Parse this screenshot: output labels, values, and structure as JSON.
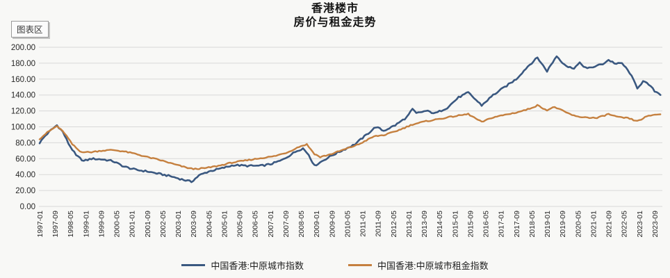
{
  "window": {
    "tooltip_label": "图表区"
  },
  "title": {
    "line1": "香港楼市",
    "line2": "房价与租金走势"
  },
  "chart_data": {
    "type": "line",
    "title": "香港楼市 房价与租金走势",
    "xlabel": "",
    "ylabel": "",
    "ylim": [
      0,
      200
    ],
    "y_tick_step": 20,
    "y_tick_decimals": 2,
    "grid": "horizontal",
    "gridline_color": "#d9d9d8",
    "axis_text_color": "#262626",
    "legend_position": "bottom",
    "x_start": "1997-01",
    "x_end": "2024-01",
    "x_tick_interval_months": 8,
    "x_tick_labels": [
      "1997-01",
      "1997-09",
      "1998-05",
      "1999-01",
      "1999-09",
      "2000-05",
      "2001-01",
      "2001-09",
      "2002-05",
      "2003-01",
      "2003-09",
      "2004-05",
      "2005-01",
      "2005-09",
      "2006-05",
      "2007-01",
      "2007-09",
      "2008-05",
      "2009-01",
      "2009-09",
      "2010-05",
      "2011-01",
      "2011-09",
      "2012-05",
      "2013-01",
      "2013-09",
      "2014-05",
      "2015-01",
      "2015-09",
      "2016-05",
      "2017-01",
      "2017-09",
      "2018-05",
      "2019-01",
      "2019-09",
      "2020-05",
      "2021-01",
      "2021-09",
      "2022-05",
      "2023-01",
      "2023-09"
    ],
    "series": [
      {
        "name": "中国香港:中原城市指数",
        "color": "#3a5880",
        "keypoints": [
          [
            "1997-01",
            80
          ],
          [
            "1997-04",
            89
          ],
          [
            "1997-07",
            96
          ],
          [
            "1997-10",
            102
          ],
          [
            "1998-01",
            94
          ],
          [
            "1998-04",
            79
          ],
          [
            "1998-08",
            64
          ],
          [
            "1998-12",
            57
          ],
          [
            "1999-04",
            60
          ],
          [
            "1999-10",
            59
          ],
          [
            "2000-03",
            57
          ],
          [
            "2000-09",
            50
          ],
          [
            "2001-03",
            46
          ],
          [
            "2001-09",
            44
          ],
          [
            "2002-03",
            41
          ],
          [
            "2002-09",
            38
          ],
          [
            "2003-03",
            34
          ],
          [
            "2003-08",
            31
          ],
          [
            "2003-12",
            39
          ],
          [
            "2004-05",
            44
          ],
          [
            "2004-12",
            48
          ],
          [
            "2005-06",
            52
          ],
          [
            "2006-01",
            51
          ],
          [
            "2006-08",
            51
          ],
          [
            "2007-01",
            53
          ],
          [
            "2007-07",
            58
          ],
          [
            "2008-03",
            70
          ],
          [
            "2008-06",
            73
          ],
          [
            "2008-09",
            65
          ],
          [
            "2008-12",
            51
          ],
          [
            "2009-04",
            57
          ],
          [
            "2009-09",
            64
          ],
          [
            "2010-03",
            71
          ],
          [
            "2010-09",
            78
          ],
          [
            "2011-03",
            90
          ],
          [
            "2011-08",
            100
          ],
          [
            "2011-12",
            95
          ],
          [
            "2012-06",
            102
          ],
          [
            "2012-12",
            112
          ],
          [
            "2013-03",
            122
          ],
          [
            "2013-05",
            117
          ],
          [
            "2013-10",
            120
          ],
          [
            "2014-03",
            117
          ],
          [
            "2014-09",
            124
          ],
          [
            "2015-03",
            137
          ],
          [
            "2015-08",
            143
          ],
          [
            "2016-03",
            127
          ],
          [
            "2016-09",
            140
          ],
          [
            "2017-03",
            150
          ],
          [
            "2017-09",
            160
          ],
          [
            "2018-03",
            176
          ],
          [
            "2018-08",
            187
          ],
          [
            "2019-01",
            170
          ],
          [
            "2019-06",
            189
          ],
          [
            "2019-09",
            181
          ],
          [
            "2019-12",
            175
          ],
          [
            "2020-03",
            174
          ],
          [
            "2020-06",
            180
          ],
          [
            "2020-10",
            173
          ],
          [
            "2021-02",
            176
          ],
          [
            "2021-06",
            179
          ],
          [
            "2021-09",
            184
          ],
          [
            "2022-01",
            179
          ],
          [
            "2022-04",
            180
          ],
          [
            "2022-08",
            168
          ],
          [
            "2022-12",
            149
          ],
          [
            "2023-03",
            157
          ],
          [
            "2023-06",
            153
          ],
          [
            "2023-09",
            145
          ],
          [
            "2023-12",
            141
          ]
        ]
      },
      {
        "name": "中国香港:中原城市租金指数",
        "color": "#c5803f",
        "keypoints": [
          [
            "1997-01",
            85
          ],
          [
            "1997-05",
            93
          ],
          [
            "1997-10",
            101
          ],
          [
            "1998-02",
            92
          ],
          [
            "1998-06",
            78
          ],
          [
            "1998-10",
            69
          ],
          [
            "1999-03",
            68
          ],
          [
            "1999-09",
            70
          ],
          [
            "2000-03",
            71
          ],
          [
            "2000-09",
            69
          ],
          [
            "2001-03",
            66
          ],
          [
            "2001-09",
            62
          ],
          [
            "2002-04",
            58
          ],
          [
            "2002-11",
            53
          ],
          [
            "2003-05",
            49
          ],
          [
            "2003-09",
            47
          ],
          [
            "2004-03",
            48
          ],
          [
            "2004-10",
            51
          ],
          [
            "2005-05",
            55
          ],
          [
            "2006-01",
            58
          ],
          [
            "2006-09",
            61
          ],
          [
            "2007-03",
            63
          ],
          [
            "2007-10",
            68
          ],
          [
            "2008-04",
            75
          ],
          [
            "2008-08",
            78
          ],
          [
            "2008-12",
            66
          ],
          [
            "2009-03",
            62
          ],
          [
            "2009-09",
            66
          ],
          [
            "2010-04",
            72
          ],
          [
            "2010-11",
            78
          ],
          [
            "2011-07",
            88
          ],
          [
            "2012-01",
            90
          ],
          [
            "2012-08",
            96
          ],
          [
            "2013-03",
            103
          ],
          [
            "2013-10",
            107
          ],
          [
            "2014-05",
            110
          ],
          [
            "2014-12",
            113
          ],
          [
            "2015-08",
            116
          ],
          [
            "2016-03",
            106
          ],
          [
            "2016-09",
            112
          ],
          [
            "2017-03",
            115
          ],
          [
            "2017-09",
            118
          ],
          [
            "2018-03",
            122
          ],
          [
            "2018-08",
            127
          ],
          [
            "2019-01",
            121
          ],
          [
            "2019-05",
            125
          ],
          [
            "2019-10",
            119
          ],
          [
            "2020-04",
            113
          ],
          [
            "2020-09",
            112
          ],
          [
            "2021-03",
            111
          ],
          [
            "2021-09",
            116
          ],
          [
            "2022-02",
            112
          ],
          [
            "2022-07",
            111
          ],
          [
            "2022-12",
            107
          ],
          [
            "2023-04",
            112
          ],
          [
            "2023-08",
            115
          ],
          [
            "2023-12",
            116
          ]
        ]
      }
    ]
  }
}
